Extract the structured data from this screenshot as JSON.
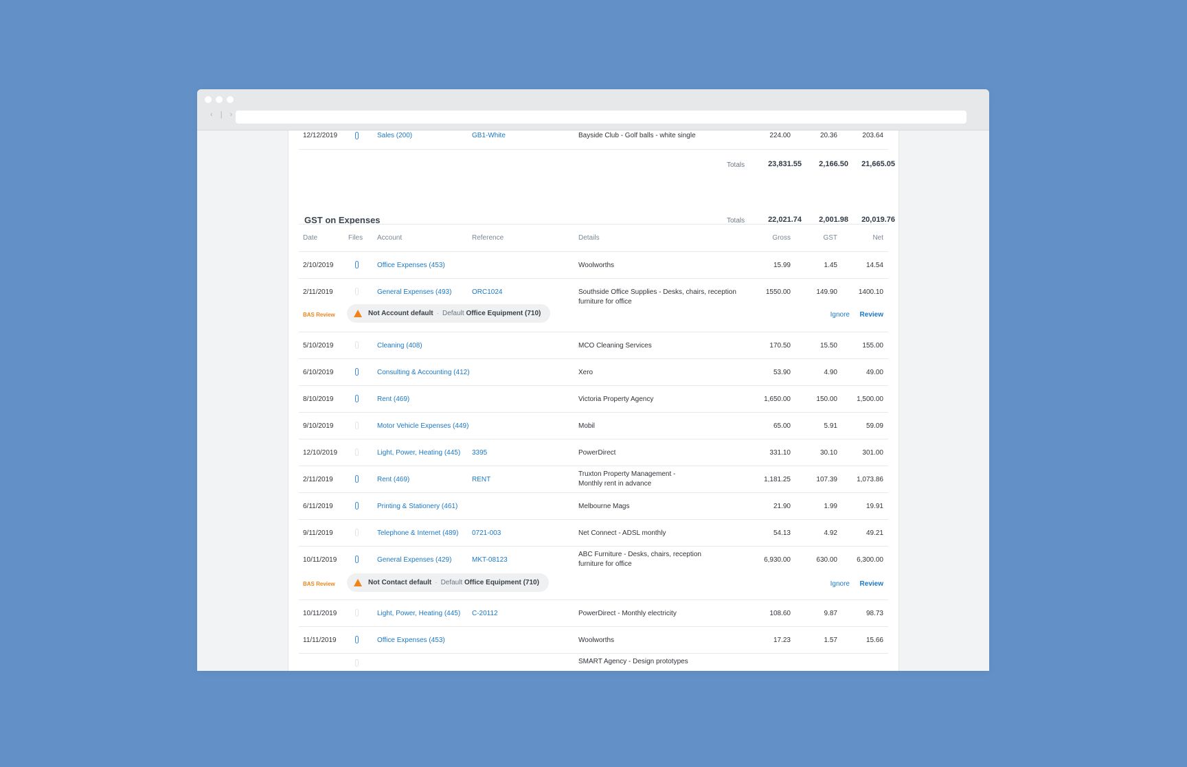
{
  "browser": {
    "nav_arrows": "‹ | ›",
    "colors": {
      "background": "#6391c7",
      "link": "#1b78c4",
      "warning": "#f08318"
    }
  },
  "sales_tail": {
    "row": {
      "date": "12/12/2019",
      "file_icon": "paperclip-icon",
      "has_file": true,
      "account": "Sales (200)",
      "reference": "GB1-White",
      "details": "Bayside Club - Golf balls - white single",
      "gross": "224.00",
      "gst": "20.36",
      "net": "203.64"
    },
    "totals": {
      "label": "Totals",
      "gross": "23,831.55",
      "gst": "2,166.50",
      "net": "21,665.05"
    }
  },
  "expenses": {
    "title": "GST on Expenses",
    "totals": {
      "label": "Totals",
      "gross": "22,021.74",
      "gst": "2,001.98",
      "net": "20,019.76"
    },
    "columns": {
      "date": "Date",
      "files": "Files",
      "account": "Account",
      "reference": "Reference",
      "details": "Details",
      "gross": "Gross",
      "gst": "GST",
      "net": "Net"
    },
    "rows": [
      {
        "date": "2/10/2019",
        "has_file": true,
        "account": "Office Expenses (453)",
        "reference": "",
        "details": "Woolworths",
        "gross": "15.99",
        "gst": "1.45",
        "net": "14.54"
      },
      {
        "date": "2/11/2019",
        "has_file": false,
        "account": "General Expenses (493)",
        "reference": "ORC1024",
        "details": "Southside Office Supplies -  Desks, chairs, reception furniture for office",
        "gross": "1550.00",
        "gst": "149.90",
        "net": "1400.10"
      },
      {
        "date": "5/10/2019",
        "has_file": false,
        "account": "Cleaning (408)",
        "reference": "",
        "details": "MCO Cleaning Services",
        "gross": "170.50",
        "gst": "15.50",
        "net": "155.00"
      },
      {
        "date": "6/10/2019",
        "has_file": true,
        "account": "Consulting & Accounting (412)",
        "reference": "",
        "details": "Xero",
        "gross": "53.90",
        "gst": "4.90",
        "net": "49.00"
      },
      {
        "date": "8/10/2019",
        "has_file": true,
        "account": "Rent (469)",
        "reference": "",
        "details": "Victoria Property Agency",
        "gross": "1,650.00",
        "gst": "150.00",
        "net": "1,500.00"
      },
      {
        "date": "9/10/2019",
        "has_file": false,
        "account": "Motor Vehicle Expenses (449)",
        "reference": "",
        "details": "Mobil",
        "gross": "65.00",
        "gst": "5.91",
        "net": "59.09"
      },
      {
        "date": "12/10/2019",
        "has_file": false,
        "account": "Light, Power, Heating (445)",
        "reference": "3395",
        "details": "PowerDirect",
        "gross": "331.10",
        "gst": "30.10",
        "net": "301.00"
      },
      {
        "date": "2/11/2019",
        "has_file": true,
        "account": "Rent (469)",
        "reference": "RENT",
        "details": "Truxton Property Management - Monthly rent in advance",
        "gross": "1,181.25",
        "gst": "107.39",
        "net": "1,073.86"
      },
      {
        "date": "6/11/2019",
        "has_file": true,
        "account": "Printing & Stationery (461)",
        "reference": "",
        "details": "Melbourne Mags",
        "gross": "21.90",
        "gst": "1.99",
        "net": "19.91"
      },
      {
        "date": "9/11/2019",
        "has_file": false,
        "account": "Telephone & Internet (489)",
        "reference": "0721-003",
        "details": "Net Connect - ADSL monthly",
        "gross": "54.13",
        "gst": "4.92",
        "net": "49.21"
      },
      {
        "date": "10/11/2019",
        "has_file": true,
        "account": "General Expenses (429)",
        "reference": "MKT-08123",
        "details": "ABC Furniture - Desks, chairs, reception furniture for office",
        "gross": "6,930.00",
        "gst": "630.00",
        "net": "6,300.00"
      },
      {
        "date": "10/11/2019",
        "has_file": false,
        "account": "Light, Power, Heating (445)",
        "reference": "C-20112",
        "details": "PowerDirect - Monthly electricity",
        "gross": "108.60",
        "gst": "9.87",
        "net": "98.73"
      },
      {
        "date": "11/11/2019",
        "has_file": true,
        "account": "Office Expenses (453)",
        "reference": "",
        "details": "Woolworths",
        "gross": "17.23",
        "gst": "1.57",
        "net": "15.66"
      },
      {
        "date": "",
        "has_file": false,
        "account": "",
        "reference": "",
        "details": "SMART Agency - Design prototypes",
        "gross": "",
        "gst": "",
        "net": ""
      }
    ],
    "reviews": [
      {
        "tag": "BAS Review",
        "issue": "Not Account default",
        "sep": "·",
        "default_label": "Default",
        "default_value": "Office Equipment (710)",
        "ignore": "Ignore",
        "review": "Review",
        "icon": "warning-triangle-icon"
      },
      {
        "tag": "BAS Review",
        "issue": "Not Contact default",
        "sep": "·",
        "default_label": "Default",
        "default_value": "Office Equipment (710)",
        "ignore": "Ignore",
        "review": "Review",
        "icon": "warning-triangle-icon"
      }
    ]
  }
}
